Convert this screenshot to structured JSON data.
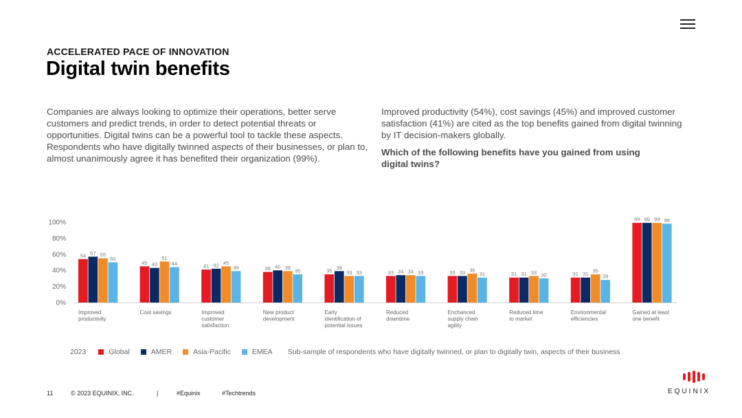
{
  "header": {
    "eyebrow": "ACCELERATED PACE OF INNOVATION",
    "title": "Digital twin benefits"
  },
  "body": {
    "left_text": "Companies are always looking to optimize their operations, better serve customers and predict trends, in order to detect potential threats or opportunities. Digital twins can be a powerful tool to tackle these aspects. Respondents who have digitally twinned aspects of their businesses, or plan to, almost unanimously agree it has benefited their organization (99%).",
    "right_text": "Improved productivity (54%), cost savings (45%) and improved customer satisfaction (41%) are cited as the top benefits gained from digital twinning by IT decision-makers globally.",
    "question": "Which of the following benefits have you gained from using digital twins?"
  },
  "chart_data": {
    "type": "bar",
    "categories": [
      [
        "Improved",
        "productivity"
      ],
      [
        "Cost savings"
      ],
      [
        "Improved",
        "customer",
        "satisfaction"
      ],
      [
        "New product",
        "development"
      ],
      [
        "Early",
        "identification of",
        "potential issues"
      ],
      [
        "Reduced",
        "downtime"
      ],
      [
        "Enchanced",
        "supply chain",
        "agility"
      ],
      [
        "Reduced time",
        "to market"
      ],
      [
        "Environmental",
        "efficiencies"
      ],
      [
        "Gained at least",
        "one benefit"
      ]
    ],
    "series": [
      {
        "name": "Global",
        "color": "#e31b23",
        "values": [
          54,
          45,
          41,
          38,
          35,
          33,
          33,
          31,
          31,
          99
        ]
      },
      {
        "name": "AMER",
        "color": "#0b2a63",
        "values": [
          57,
          43,
          42,
          40,
          39,
          34,
          33,
          31,
          31,
          99
        ]
      },
      {
        "name": "Asia-Pacific",
        "color": "#f28c28",
        "values": [
          55,
          51,
          45,
          39,
          33,
          34,
          36,
          33,
          35,
          99
        ]
      },
      {
        "name": "EMEA",
        "color": "#5ab4e5",
        "values": [
          50,
          44,
          39,
          35,
          33,
          33,
          31,
          30,
          28,
          98
        ]
      }
    ],
    "yticks": [
      "100%",
      "80%",
      "60%",
      "40%",
      "20%",
      "0%"
    ],
    "ylim": [
      0,
      100
    ],
    "grid": false,
    "legend": "bottom"
  },
  "legend": {
    "year": "2023",
    "note": "Sub-sample of respondents who have digitally twinned, or plan to digitally twin, aspects of their business"
  },
  "footer": {
    "page": "11",
    "copyright": "© 2023 EQUINIX, INC.",
    "separator": "|",
    "tag1": "#Equinix",
    "tag2": "#Techtrends"
  },
  "brand": {
    "logo_text": "EQUINIX",
    "logo_color": "#e31b23"
  },
  "menu": {
    "icon": "hamburger-menu-icon"
  }
}
